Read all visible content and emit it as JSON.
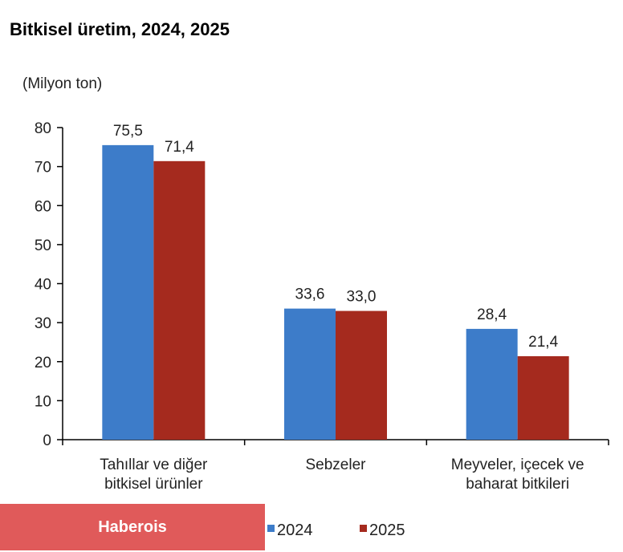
{
  "chart_data": {
    "type": "bar",
    "title": "Bitkisel üretim, 2024, 2025",
    "ylabel": "(Milyon ton)",
    "xlabel": "",
    "ylim": [
      0,
      80
    ],
    "yticks": [
      0,
      10,
      20,
      30,
      40,
      50,
      60,
      70,
      80
    ],
    "categories": [
      [
        "Tahıllar ve diğer",
        "bitkisel ürünler"
      ],
      [
        "Sebzeler"
      ],
      [
        "Meyveler, içecek ve",
        "baharat  bitkileri"
      ]
    ],
    "series": [
      {
        "name": "2024",
        "color": "#3D7CC9",
        "values": [
          75.5,
          33.6,
          28.4
        ],
        "labels": [
          "75,5",
          "33,6",
          "28,4"
        ]
      },
      {
        "name": "2025",
        "color": "#A52A1E",
        "values": [
          71.4,
          33.0,
          21.4
        ],
        "labels": [
          "71,4",
          "33,0",
          "21,4"
        ]
      }
    ],
    "grid": false,
    "legend": "bottom"
  },
  "watermark": "Haberois"
}
